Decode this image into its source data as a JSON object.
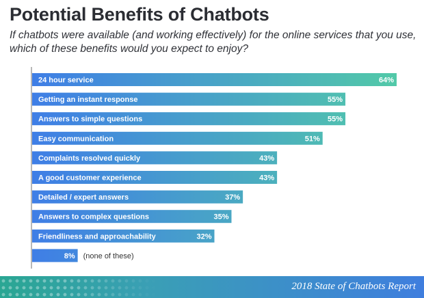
{
  "page": {
    "title": "Potential Benefits of Chatbots",
    "subtitle": "If chatbots were available (and working effectively) for the online services that you use, which of these benefits would you expect to enjoy?",
    "footer": "2018 State of Chatbots Report"
  },
  "colors": {
    "bar_start": "#3f7ee6",
    "bar_end": "#52c9a8",
    "axis": "#6f6f6f"
  },
  "chart_data": {
    "type": "bar",
    "orientation": "horizontal",
    "unit": "%",
    "categories": [
      "24 hour service",
      "Getting an instant response",
      "Answers to simple questions",
      "Easy communication",
      "Complaints resolved quickly",
      "A good customer experience",
      "Detailed / expert answers",
      "Answers to complex questions",
      "Friendliness and approachability",
      "(none of these)"
    ],
    "values": [
      64,
      55,
      55,
      51,
      43,
      43,
      37,
      35,
      32,
      8
    ],
    "value_labels": [
      "64%",
      "55%",
      "55%",
      "51%",
      "43%",
      "43%",
      "37%",
      "35%",
      "32%",
      "8%"
    ],
    "xlim": [
      0,
      64
    ],
    "grid": false,
    "legend": "none"
  }
}
